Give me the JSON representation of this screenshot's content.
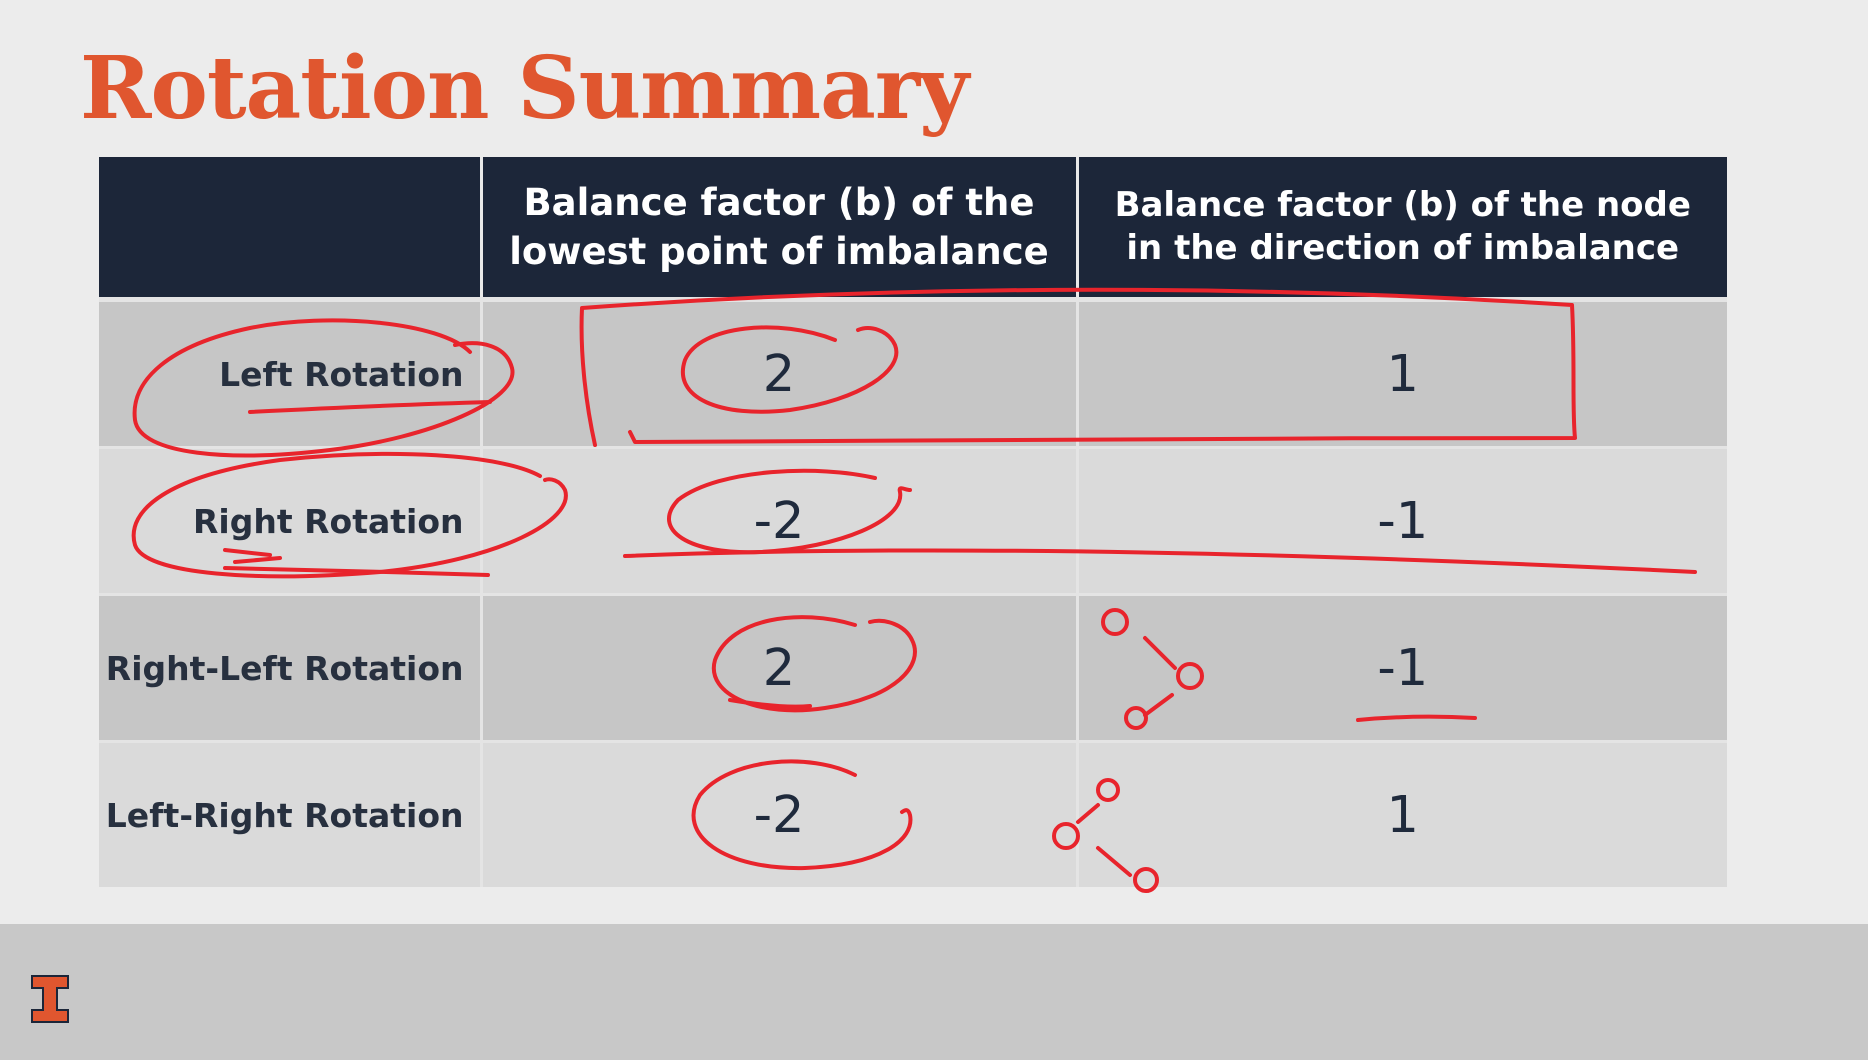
{
  "slide": {
    "title": "Rotation Summary"
  },
  "table": {
    "headers": [
      "",
      "Balance factor (b) of the lowest point of imbalance",
      "Balance factor (b) of the node in the direction of imbalance"
    ],
    "rows": [
      {
        "label": "Left Rotation",
        "lowest_b": "2",
        "direction_b": "1"
      },
      {
        "label": "Right Rotation",
        "lowest_b": "-2",
        "direction_b": "-1"
      },
      {
        "label": "Right-Left Rotation",
        "lowest_b": "2",
        "direction_b": "-1"
      },
      {
        "label": "Left-Right Rotation",
        "lowest_b": "-2",
        "direction_b": "1"
      }
    ]
  },
  "colors": {
    "title": "#e0562f",
    "header_bg": "#1c2639",
    "annotation_ink": "#e8242c",
    "logo": "#e0562f"
  },
  "icons": {
    "logo": "university-block-i-logo"
  }
}
